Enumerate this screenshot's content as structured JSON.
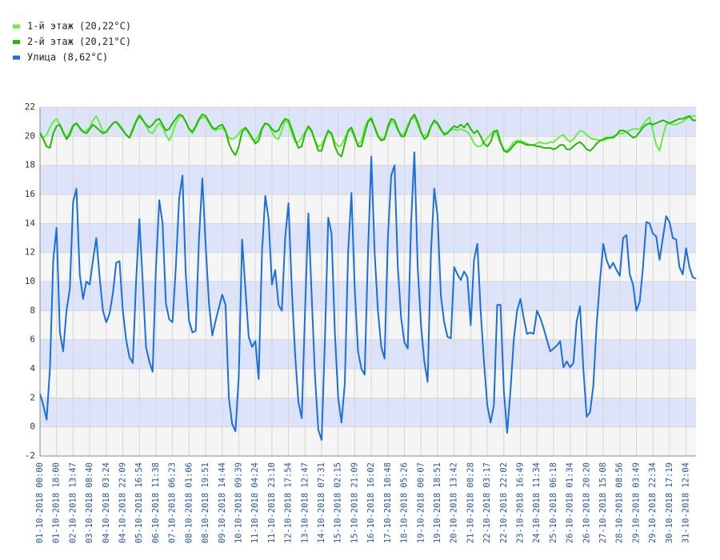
{
  "chart_data": {
    "type": "line",
    "categories": [
      "01-10-2018 00:00",
      null,
      null,
      null,
      null,
      "01-10-2018 18:00",
      null,
      null,
      null,
      null,
      "02-10-2018 13:47",
      null,
      null,
      null,
      null,
      "03-10-2018 08:40",
      null,
      null,
      null,
      null,
      "04-10-2018 03:24",
      null,
      null,
      null,
      null,
      "04-10-2018 22:09",
      null,
      null,
      null,
      null,
      "05-10-2018 16:54",
      null,
      null,
      null,
      null,
      "06-10-2018 11:38",
      null,
      null,
      null,
      null,
      "07-10-2018 06:23",
      null,
      null,
      null,
      null,
      "08-10-2018 01:06",
      null,
      null,
      null,
      null,
      "08-10-2018 19:51",
      null,
      null,
      null,
      null,
      "09-10-2018 14:44",
      null,
      null,
      null,
      null,
      "10-10-2018 09:39",
      null,
      null,
      null,
      null,
      "11-10-2018 04:24",
      null,
      null,
      null,
      null,
      "11-10-2018 23:10",
      null,
      null,
      null,
      null,
      "12-10-2018 17:54",
      null,
      null,
      null,
      null,
      "13-10-2018 12:47",
      null,
      null,
      null,
      null,
      "14-10-2018 07:31",
      null,
      null,
      null,
      null,
      "15-10-2018 02:15",
      null,
      null,
      null,
      null,
      "15-10-2018 21:09",
      null,
      null,
      null,
      null,
      "16-10-2018 16:02",
      null,
      null,
      null,
      null,
      "17-10-2018 10:48",
      null,
      null,
      null,
      null,
      "18-10-2018 05:26",
      null,
      null,
      null,
      null,
      "19-10-2018 00:07",
      null,
      null,
      null,
      null,
      "19-10-2018 18:51",
      null,
      null,
      null,
      null,
      "20-10-2018 13:42",
      null,
      null,
      null,
      null,
      "21-10-2018 08:28",
      null,
      null,
      null,
      null,
      "22-10-2018 03:17",
      null,
      null,
      null,
      null,
      "22-10-2018 22:02",
      null,
      null,
      null,
      null,
      "23-10-2018 16:49",
      null,
      null,
      null,
      null,
      "24-10-2018 11:34",
      null,
      null,
      null,
      null,
      "25-10-2018 06:18",
      null,
      null,
      null,
      null,
      "26-10-2018 01:34",
      null,
      null,
      null,
      null,
      "26-10-2018 20:20",
      null,
      null,
      null,
      null,
      "27-10-2018 15:08",
      null,
      null,
      null,
      null,
      "28-10-2018 08:56",
      null,
      null,
      null,
      null,
      "29-10-2018 03:49",
      null,
      null,
      null,
      null,
      "29-10-2018 22:34",
      null,
      null,
      null,
      null,
      "30-10-2018 17:19",
      null,
      null,
      null,
      null,
      "31-10-2018 12:04",
      null,
      null,
      null
    ],
    "series": [
      {
        "name": "1-й этаж (20,22°C)",
        "color": "#66ee44",
        "values": [
          20.3,
          19.9,
          20.1,
          20.6,
          21,
          21.2,
          20.8,
          20.2,
          19.9,
          20.3,
          20.8,
          20.9,
          20.5,
          20.3,
          20.4,
          20.6,
          21.1,
          21.4,
          20.9,
          20.3,
          20.3,
          20.6,
          20.9,
          21,
          20.8,
          20.5,
          20.1,
          19.9,
          20.6,
          21.1,
          21.5,
          21.2,
          20.7,
          20.3,
          20.2,
          20.6,
          20.9,
          20.6,
          20.1,
          19.7,
          20.2,
          20.9,
          21.3,
          21.4,
          21,
          20.5,
          20.2,
          20.6,
          21.1,
          21.3,
          21.3,
          20.9,
          20.5,
          20.4,
          20.5,
          20.6,
          20.3,
          19.9,
          19.8,
          19.9,
          20.2,
          20.5,
          20.5,
          20.2,
          19.8,
          19.7,
          20.1,
          20.6,
          20.9,
          20.8,
          20.3,
          19.9,
          19.8,
          20.4,
          21.1,
          20.9,
          20.2,
          19.6,
          19.6,
          19.9,
          20.3,
          20.6,
          20.3,
          19.7,
          19.3,
          19.4,
          19.9,
          20.3,
          20.1,
          19.6,
          19.3,
          19.4,
          19.9,
          20.3,
          20.4,
          19.9,
          19.4,
          19.7,
          20.6,
          21.1,
          21.3,
          20.7,
          20.1,
          19.8,
          19.9,
          20.5,
          21,
          20.9,
          20.4,
          20.1,
          20.2,
          20.8,
          21.2,
          21.3,
          20.8,
          20.2,
          20,
          20.2,
          20.7,
          21,
          20.8,
          20.4,
          20.2,
          20.3,
          20.4,
          20.5,
          20.4,
          20.5,
          20.4,
          20.3,
          20,
          19.5,
          19.3,
          19.3,
          19.6,
          19.9,
          20.1,
          20.4,
          20.1,
          19.5,
          19.1,
          19,
          19.3,
          19.6,
          19.7,
          19.7,
          19.6,
          19.5,
          19.4,
          19.4,
          19.5,
          19.6,
          19.5,
          19.5,
          19.6,
          19.6,
          19.8,
          20,
          20.1,
          19.8,
          19.6,
          19.8,
          20.1,
          20.4,
          20.3,
          20.1,
          19.9,
          19.8,
          19.8,
          19.7,
          19.7,
          19.8,
          19.9,
          20,
          20.1,
          20.2,
          20.2,
          20.3,
          20.4,
          20.5,
          20.5,
          20.5,
          20.8,
          21.1,
          21.3,
          20.4,
          19.4,
          19,
          20,
          20.8,
          20.9,
          20.8,
          20.8,
          20.9,
          21,
          21.2,
          21.3,
          21.4,
          21.4
        ]
      },
      {
        "name": "2-й этаж (20,21°C)",
        "color": "#22bb00",
        "values": [
          20.2,
          19.8,
          19.3,
          19.2,
          20.2,
          20.7,
          20.8,
          20.3,
          19.8,
          20.1,
          20.7,
          20.9,
          20.6,
          20.3,
          20.2,
          20.5,
          20.8,
          20.6,
          20.4,
          20.2,
          20.3,
          20.6,
          20.9,
          21,
          20.7,
          20.4,
          20.1,
          19.9,
          20.4,
          21,
          21.4,
          21.1,
          20.8,
          20.6,
          20.8,
          21.1,
          21.2,
          20.8,
          20.4,
          20.5,
          20.9,
          21.2,
          21.5,
          21.4,
          21,
          20.5,
          20.3,
          20.7,
          21.2,
          21.5,
          21.4,
          21,
          20.6,
          20.5,
          20.7,
          20.8,
          20.4,
          19.5,
          19,
          18.7,
          19.3,
          20.3,
          20.6,
          20.3,
          19.9,
          19.5,
          19.7,
          20.5,
          20.9,
          20.8,
          20.5,
          20.3,
          20.4,
          20.9,
          21.2,
          21.1,
          20.5,
          19.8,
          19.2,
          19.3,
          20.2,
          20.7,
          20.4,
          19.7,
          19,
          19,
          19.8,
          20.4,
          20.2,
          19.3,
          18.8,
          18.6,
          19.5,
          20.4,
          20.6,
          20,
          19.3,
          19.3,
          20.2,
          21,
          21.2,
          20.6,
          20,
          19.7,
          19.8,
          20.7,
          21.2,
          21.1,
          20.5,
          20,
          20,
          20.6,
          21.2,
          21.5,
          21,
          20.3,
          19.8,
          20,
          20.7,
          21.1,
          20.9,
          20.5,
          20.1,
          20.2,
          20.5,
          20.7,
          20.6,
          20.8,
          20.6,
          20.9,
          20.5,
          20.2,
          20.4,
          20,
          19.5,
          19.3,
          19.6,
          20.3,
          20.4,
          19.6,
          19,
          18.9,
          19.1,
          19.4,
          19.6,
          19.6,
          19.5,
          19.4,
          19.4,
          19.4,
          19.3,
          19.3,
          19.2,
          19.2,
          19.2,
          19.1,
          19.2,
          19.4,
          19.4,
          19.1,
          19.1,
          19.3,
          19.5,
          19.6,
          19.4,
          19.1,
          19,
          19.2,
          19.5,
          19.7,
          19.8,
          19.9,
          19.9,
          19.9,
          20.1,
          20.4,
          20.4,
          20.3,
          20.1,
          19.9,
          20,
          20.3,
          20.6,
          20.8,
          20.9,
          20.8,
          20.9,
          21,
          21.1,
          21,
          20.9,
          21,
          21.1,
          21.2,
          21.2,
          21.3,
          21.4,
          21.1,
          21.1
        ]
      },
      {
        "name": "Улица (8,62°C)",
        "color": "#1a6fe0",
        "values": [
          2.3,
          1.5,
          0.5,
          4,
          11.5,
          13.7,
          6.5,
          5.2,
          8,
          9.5,
          15.5,
          16.4,
          10.5,
          8.8,
          10,
          9.8,
          11.5,
          13,
          10.3,
          8,
          7.2,
          7.8,
          9.2,
          11.3,
          11.4,
          8,
          6,
          4.8,
          4.4,
          10,
          14.3,
          10,
          5.5,
          4.5,
          3.8,
          11,
          15.6,
          14,
          8.5,
          7.4,
          7.2,
          11,
          15.7,
          17.3,
          10.5,
          7.3,
          6.5,
          6.6,
          13,
          17.1,
          12.5,
          8.5,
          6.3,
          7.3,
          8.2,
          9.1,
          8.4,
          2,
          0.2,
          -0.3,
          3.5,
          12.9,
          9.5,
          6.2,
          5.5,
          5.9,
          3.3,
          12,
          15.9,
          14.3,
          9.8,
          10.8,
          8.4,
          8,
          13,
          15.4,
          9.5,
          5,
          1.7,
          0.6,
          8,
          14.7,
          9,
          3.5,
          -0.2,
          -0.9,
          6,
          14.4,
          13.3,
          6.5,
          2,
          0.3,
          3,
          12,
          16.1,
          9.5,
          5.2,
          4,
          3.6,
          12,
          18.6,
          12,
          8,
          5.5,
          4.7,
          13,
          17.3,
          18,
          11,
          7.5,
          5.8,
          5.4,
          14,
          18.9,
          11,
          7,
          4.5,
          3.1,
          12,
          16.4,
          14.5,
          9,
          7.2,
          6.2,
          6.1,
          11,
          10.5,
          10.1,
          10.7,
          10.3,
          7,
          11.5,
          12.6,
          8,
          4.5,
          1.5,
          0.3,
          1.5,
          8.4,
          8.4,
          2.5,
          -0.4,
          2.5,
          6,
          8,
          8.8,
          7.5,
          6.4,
          6.5,
          6.4,
          8,
          7.5,
          6.8,
          6,
          5.2,
          5.4,
          5.6,
          5.9,
          4.1,
          4.5,
          4.1,
          4.4,
          7.3,
          8.3,
          4,
          0.7,
          1,
          2.8,
          7,
          10,
          12.6,
          11.5,
          10.9,
          11.3,
          10.8,
          10.4,
          13,
          13.2,
          10.5,
          9.8,
          8,
          8.6,
          11,
          14.1,
          14,
          13.3,
          13.1,
          11.5,
          13,
          14.5,
          14.1,
          13,
          12.9,
          11,
          10.5,
          12.3,
          11,
          10.3,
          10.2
        ]
      }
    ],
    "ylim": [
      -2,
      22
    ],
    "yticks": [
      -2,
      0,
      2,
      4,
      6,
      8,
      10,
      12,
      14,
      16,
      18,
      20,
      22
    ],
    "grid": true,
    "legend": "top-left"
  }
}
